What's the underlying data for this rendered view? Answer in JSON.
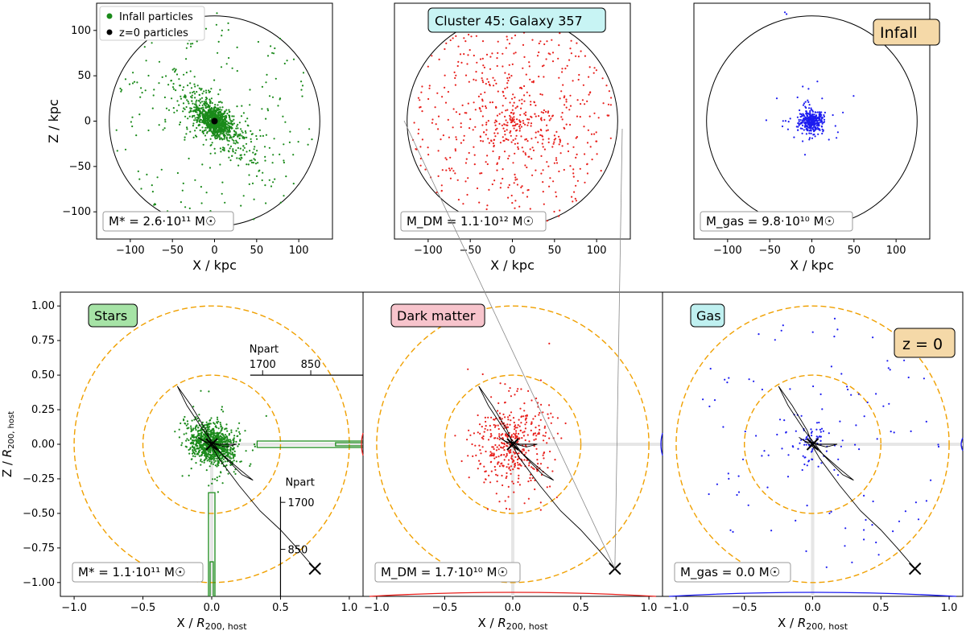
{
  "figure": {
    "title": "Cluster 45: Galaxy 357",
    "infall_tag": "Infall",
    "z0_tag": "z = 0",
    "legend": {
      "infall_label": "Infall particles",
      "z0_label": "z=0 particles"
    },
    "colors": {
      "stars": "#1a8a1a",
      "dm": "#e8201c",
      "gas": "#1c1cf0",
      "circle": "#f0a000",
      "track": "#000000",
      "stars_badge": "#a6e3a6",
      "dm_badge": "#f7c4cc",
      "gas_badge": "#bff0f0",
      "title_badge": "#c8f4f4",
      "tag_badge": "#f5d9a8"
    }
  },
  "chart_data": [
    {
      "type": "scatter",
      "panel": "infall-stars",
      "xlabel": "X / kpc",
      "ylabel": "Z / kpc",
      "xlim": [
        -140,
        140
      ],
      "ylim": [
        -130,
        130
      ],
      "xticks": [
        -100,
        -50,
        0,
        50,
        100
      ],
      "yticks": [
        -100,
        -50,
        0,
        50,
        100
      ],
      "xtick_labels": [
        "−100",
        "−50",
        "0",
        "50",
        "100"
      ],
      "ytick_labels": [
        "−100",
        "−50",
        "0",
        "50",
        "100"
      ],
      "circle_radius_kpc": 125,
      "series": "stars",
      "n_points": 1300,
      "core_sigma_kpc": 12,
      "mass_label": "M* = 2.6·10¹¹ M☉"
    },
    {
      "type": "scatter",
      "panel": "infall-dm",
      "xlabel": "X / kpc",
      "ylabel": "",
      "xlim": [
        -140,
        140
      ],
      "ylim": [
        -130,
        130
      ],
      "xticks": [
        -100,
        -50,
        0,
        50,
        100
      ],
      "xtick_labels": [
        "−100",
        "−50",
        "0",
        "50",
        "100"
      ],
      "circle_radius_kpc": 125,
      "series": "dm",
      "n_points": 650,
      "mass_label": "M_DM = 1.1·10¹² M☉"
    },
    {
      "type": "scatter",
      "panel": "infall-gas",
      "xlabel": "X / kpc",
      "ylabel": "",
      "xlim": [
        -140,
        140
      ],
      "ylim": [
        -130,
        130
      ],
      "xticks": [
        -100,
        -50,
        0,
        50,
        100
      ],
      "xtick_labels": [
        "−100",
        "−50",
        "0",
        "50",
        "100"
      ],
      "circle_radius_kpc": 125,
      "series": "gas",
      "n_points": 380,
      "core_sigma_kpc": 7,
      "mass_label": "M_gas = 9.8·10¹⁰ M☉"
    },
    {
      "type": "scatter",
      "panel": "z0-stars",
      "xlabel": "X / R200,host",
      "ylabel": "Z / R200,host",
      "xlim": [
        -1.1,
        1.1
      ],
      "ylim": [
        -1.1,
        1.1
      ],
      "xticks": [
        -1.0,
        -0.5,
        0.0,
        0.5,
        1.0
      ],
      "xtick_labels": [
        "−1.0",
        "−0.5",
        "0.0",
        "0.5",
        "1.0"
      ],
      "yticks": [
        1.0,
        0.75,
        0.5,
        0.25,
        0.0,
        -0.25,
        -0.5,
        -0.75,
        -1.0
      ],
      "ytick_labels": [
        "1.00",
        "0.75",
        "0.50",
        "0.25",
        "0.00",
        "−0.25",
        "−0.50",
        "−0.75",
        "−1.00"
      ],
      "label": "Stars",
      "series": "stars",
      "n_points": 900,
      "circles_radius": [
        0.5,
        1.0
      ],
      "end_marker": [
        0.75,
        -0.9
      ],
      "npart_label": "Npart",
      "npart_ticks": [
        "1700",
        "850"
      ],
      "mass_label": "M* = 1.1·10¹¹ M☉"
    },
    {
      "type": "scatter",
      "panel": "z0-dm",
      "xlabel": "X / R200,host",
      "ylabel": "",
      "xlim": [
        -1.1,
        1.1
      ],
      "ylim": [
        -1.1,
        1.1
      ],
      "xticks": [
        -1.0,
        -0.5,
        0.0,
        0.5,
        1.0
      ],
      "xtick_labels": [
        "−1.0",
        "−0.5",
        "0.0",
        "0.5",
        "1.0"
      ],
      "label": "Dark matter",
      "series": "dm",
      "n_points": 420,
      "circles_radius": [
        0.5,
        1.0
      ],
      "end_marker": [
        0.75,
        -0.9
      ],
      "mass_label": "M_DM = 1.7·10¹⁰ M☉"
    },
    {
      "type": "scatter",
      "panel": "z0-gas",
      "xlabel": "X / R200,host",
      "ylabel": "",
      "xlim": [
        -1.1,
        1.1
      ],
      "ylim": [
        -1.1,
        1.1
      ],
      "xticks": [
        -1.0,
        -0.5,
        0.0,
        0.5,
        1.0
      ],
      "xtick_labels": [
        "−1.0",
        "−0.5",
        "0.0",
        "0.5",
        "1.0"
      ],
      "label": "Gas",
      "series": "gas",
      "n_points": 180,
      "circles_radius": [
        0.5,
        1.0
      ],
      "end_marker": [
        0.75,
        -0.9
      ],
      "mass_label": "M_gas = 0.0 M☉"
    }
  ],
  "orbit_track": [
    [
      0.0,
      0.0
    ],
    [
      -0.04,
      0.1
    ],
    [
      -0.15,
      0.28
    ],
    [
      -0.25,
      0.42
    ],
    [
      -0.18,
      0.28
    ],
    [
      -0.06,
      0.1
    ],
    [
      0.08,
      -0.08
    ],
    [
      0.22,
      -0.22
    ],
    [
      0.3,
      -0.26
    ],
    [
      0.2,
      -0.18
    ],
    [
      0.05,
      -0.05
    ],
    [
      -0.1,
      0.05
    ],
    [
      -0.05,
      0.02
    ],
    [
      0.1,
      -0.02
    ],
    [
      0.18,
      0.0
    ],
    [
      0.05,
      0.0
    ],
    [
      -0.02,
      0.02
    ],
    [
      0.05,
      -0.1
    ],
    [
      0.2,
      -0.3
    ],
    [
      0.35,
      -0.48
    ],
    [
      0.5,
      -0.62
    ],
    [
      0.62,
      -0.75
    ],
    [
      0.75,
      -0.9
    ]
  ]
}
